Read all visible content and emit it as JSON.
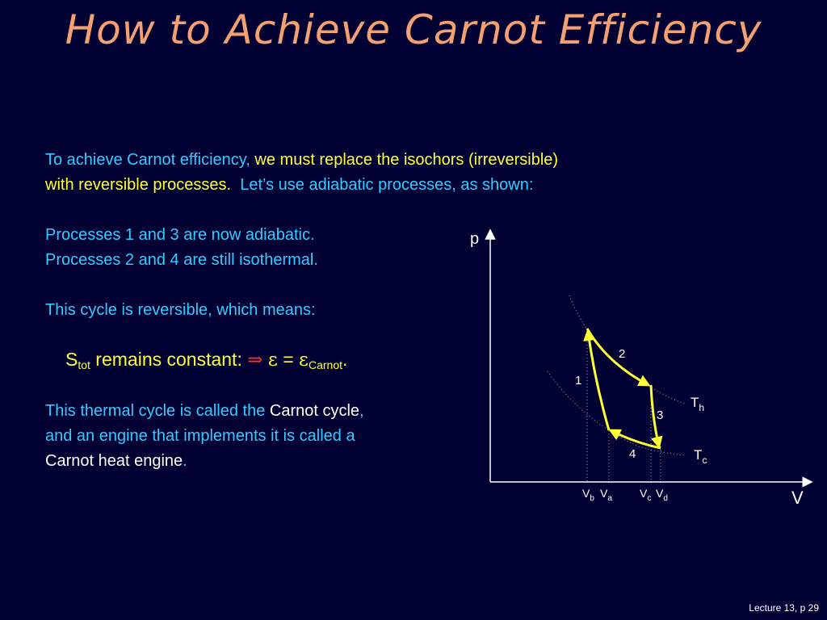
{
  "title": "How to Achieve Carnot Efficiency",
  "para1": {
    "a": "To achieve Carnot efficiency, ",
    "b": "we must replace the isochors (irreversible)",
    "c": "with reversible processes.",
    "d": "Let’s use adiabatic processes, as shown:"
  },
  "para2": {
    "line1": "Processes 1 and 3 are now adiabatic.",
    "line2": "Processes 2 and 4 are still isothermal."
  },
  "para3": "This cycle is reversible, which means:",
  "summary": {
    "s": "S",
    "s_sub": "tot",
    "remains": " remains constant: ",
    "implies": "⇒",
    "eps": "ε",
    "eq": " = ",
    "eps2": "ε",
    "carnot_sub": "Carnot",
    "period": "."
  },
  "para4": {
    "a": "This thermal cycle is called the ",
    "b": "Carnot cycle",
    "c": ",",
    "d": "and an engine that implements it is called a",
    "e": "Carnot heat engine",
    "f": "."
  },
  "diagram": {
    "p_label": "p",
    "v_label": "V",
    "process_labels": [
      "1",
      "2",
      "3",
      "4"
    ],
    "th": "T",
    "th_sub": "h",
    "tc": "T",
    "tc_sub": "c",
    "vb": "V",
    "vb_sub": "b",
    "va": "V",
    "va_sub": "a",
    "vc": "V",
    "vc_sub": "c",
    "vd": "V",
    "vd_sub": "d"
  },
  "footer": "Lecture 13, p 29",
  "colors": {
    "background": "#000033",
    "title": "#F4A070",
    "cyan": "#33CCFF",
    "yellow": "#FFFF33",
    "cycle": "#FFFF33"
  }
}
